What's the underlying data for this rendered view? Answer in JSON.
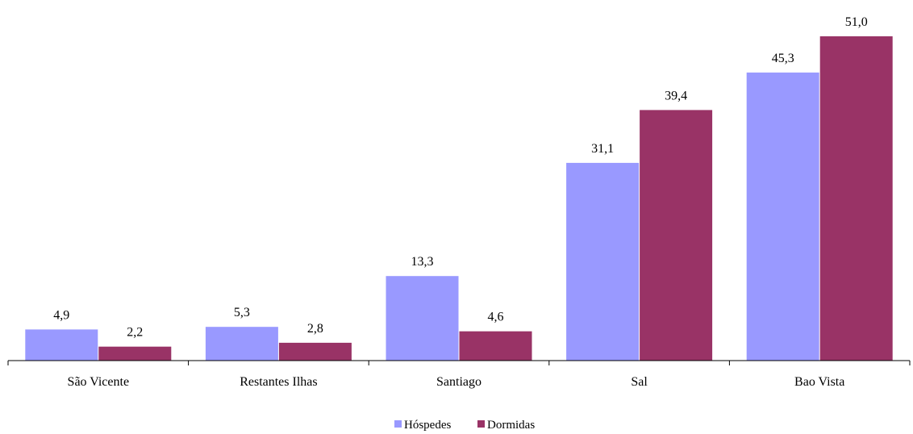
{
  "chart_data": {
    "type": "bar",
    "title": "",
    "xlabel": "",
    "ylabel": "",
    "categories": [
      "São Vicente",
      "Restantes Ilhas",
      "Santiago",
      "Sal",
      "Bao Vista"
    ],
    "series": [
      {
        "name": "Hóspedes",
        "color": "#9999ff",
        "values": [
          4.9,
          5.3,
          13.3,
          31.1,
          45.3
        ],
        "labels": [
          "4,9",
          "5,3",
          "13,3",
          "31,1",
          "45,3"
        ]
      },
      {
        "name": "Dormidas",
        "color": "#993366",
        "values": [
          2.2,
          2.8,
          4.6,
          39.4,
          51.0
        ],
        "labels": [
          "2,2",
          "2,8",
          "4,6",
          "39,4",
          "51,0"
        ]
      }
    ],
    "ylim": [
      0,
      51
    ],
    "grid": false,
    "legend_position": "bottom-center"
  }
}
